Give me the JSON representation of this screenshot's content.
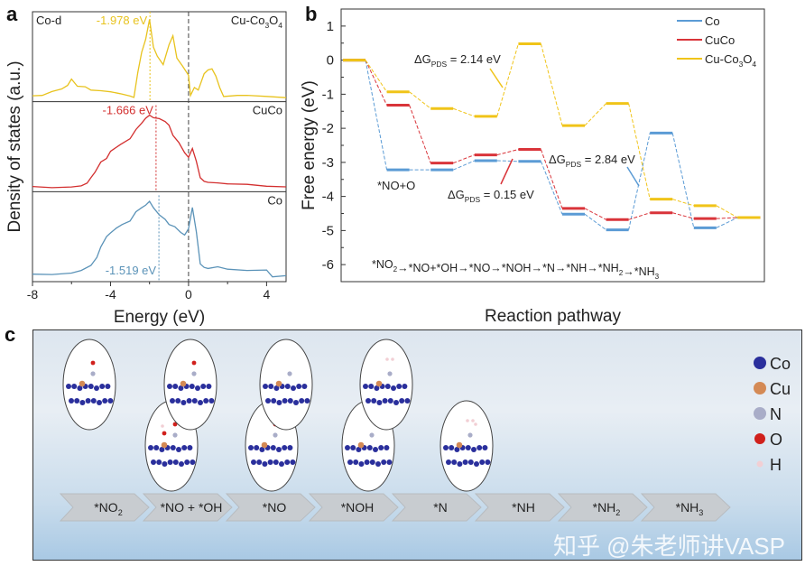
{
  "panel_labels": {
    "a": "a",
    "b": "b",
    "c": "c"
  },
  "chart_data": [
    {
      "type": "line",
      "panel": "a",
      "xlabel": "Energy (eV)",
      "ylabel": "Density of states (a.u.)",
      "xlim": [
        -8,
        5
      ],
      "xticks": [
        "-8",
        "-4",
        "0",
        "4"
      ],
      "corner_label": "Co-d",
      "series": [
        {
          "name": "Cu-Co3O4",
          "label_main": "Cu-Co",
          "label_sub1": "3",
          "label_mid": "O",
          "label_sub2": "4",
          "color": "#e8c31e",
          "d_band_center": -1.978,
          "d_band_label": "-1.978 eV",
          "x": [
            -8,
            -7.5,
            -7,
            -6.5,
            -6.2,
            -6,
            -5.7,
            -5.3,
            -5,
            -4.5,
            -4,
            -3.5,
            -3,
            -2.8,
            -2.6,
            -2.4,
            -2.2,
            -2,
            -1.8,
            -1.6,
            -1.3,
            -1,
            -0.8,
            -0.6,
            -0.3,
            0,
            0.1,
            0.3,
            0.5,
            0.8,
            1,
            1.2,
            1.4,
            1.6,
            1.8,
            2.5,
            3,
            4,
            5
          ],
          "y": [
            0.03,
            0.05,
            0.1,
            0.12,
            0.15,
            0.23,
            0.15,
            0.16,
            0.12,
            0.1,
            0.07,
            0.04,
            0.02,
            0.02,
            0.35,
            0.6,
            0.75,
            1.0,
            0.65,
            0.55,
            0.45,
            0.7,
            0.8,
            0.5,
            0.4,
            0.3,
            0.05,
            0.15,
            0.1,
            0.3,
            0.35,
            0.38,
            0.3,
            0.15,
            0.02,
            0.02,
            0.02,
            0.02,
            0.02
          ]
        },
        {
          "name": "CuCo",
          "label_main": "CuCo",
          "color": "#d32f2f",
          "d_band_center": -1.666,
          "d_band_label": "-1.666 eV",
          "x": [
            -8,
            -7,
            -6,
            -5.5,
            -5.2,
            -5,
            -4.8,
            -4.5,
            -4.2,
            -4,
            -3.5,
            -3,
            -2.7,
            -2.4,
            -2.2,
            -2,
            -1.8,
            -1.5,
            -1.2,
            -1,
            -0.8,
            -0.5,
            -0.2,
            0,
            0.2,
            0.4,
            0.6,
            0.8,
            1,
            1.5,
            2,
            3,
            4,
            5
          ],
          "y": [
            0.02,
            0.02,
            0.03,
            0.03,
            0.05,
            0.12,
            0.2,
            0.35,
            0.4,
            0.48,
            0.55,
            0.62,
            0.75,
            0.85,
            0.92,
            0.95,
            0.9,
            0.88,
            0.85,
            0.82,
            0.7,
            0.6,
            0.45,
            0.38,
            0.5,
            0.35,
            0.15,
            0.1,
            0.07,
            0.05,
            0.04,
            0.05,
            0.04,
            0.03
          ]
        },
        {
          "name": "Co",
          "label_main": "Co",
          "color": "#5b93b8",
          "d_band_center": -1.519,
          "d_band_label": "-1.519 eV",
          "x": [
            -8,
            -7,
            -6,
            -5.5,
            -5,
            -4.7,
            -4.5,
            -4.2,
            -4,
            -3.7,
            -3.4,
            -3,
            -2.7,
            -2.4,
            -2.2,
            -2,
            -1.8,
            -1.5,
            -1.2,
            -1,
            -0.7,
            -0.4,
            -0.2,
            0,
            0.2,
            0.4,
            0.6,
            0.8,
            1,
            1.5,
            2,
            3,
            4,
            4.3,
            5
          ],
          "y": [
            0.05,
            0.06,
            0.08,
            0.1,
            0.15,
            0.25,
            0.4,
            0.55,
            0.6,
            0.65,
            0.68,
            0.72,
            0.85,
            0.92,
            0.96,
            1.0,
            0.9,
            0.8,
            0.75,
            0.7,
            0.68,
            0.6,
            0.55,
            0.62,
            0.9,
            0.6,
            0.2,
            0.15,
            0.12,
            0.13,
            0.1,
            0.1,
            0.12,
            0.03,
            0.03
          ]
        }
      ]
    },
    {
      "type": "line",
      "panel": "b",
      "style": "free-energy-diagram",
      "xlabel": "Reaction pathway",
      "ylabel": "Free energy (eV)",
      "ylim": [
        -6.5,
        1.5
      ],
      "yticks": [
        "1",
        "0",
        "-1",
        "-2",
        "-3",
        "-4",
        "-5",
        "-6"
      ],
      "legend_position": "top-right",
      "steps": 10,
      "series": [
        {
          "name": "Co",
          "label_main": "Co",
          "color": "#5b9bd5",
          "values": [
            0,
            -3.22,
            -3.22,
            -2.95,
            -2.97,
            -4.52,
            -4.98,
            -2.14,
            -4.92,
            -4.62
          ]
        },
        {
          "name": "CuCo",
          "label_main": "CuCo",
          "color": "#d9343a",
          "values": [
            0,
            -1.32,
            -3.02,
            -2.78,
            -2.62,
            -4.35,
            -4.68,
            -4.48,
            -4.65,
            -4.62
          ]
        },
        {
          "name": "Cu-Co3O4",
          "label_main": "Cu-Co",
          "label_sub1": "3",
          "label_mid": "O",
          "label_sub2": "4",
          "color": "#f0c419",
          "values": [
            0,
            -0.93,
            -1.42,
            -1.65,
            0.48,
            -1.92,
            -1.27,
            -4.08,
            -4.27,
            -4.62
          ]
        }
      ],
      "annotations": [
        {
          "pre": "ΔG",
          "sub": "PDS",
          "post": " = 2.14 eV",
          "color": "#f0c419"
        },
        {
          "pre": "ΔG",
          "sub": "PDS",
          "post": " = 0.15 eV",
          "color": "#d9343a"
        },
        {
          "pre": "ΔG",
          "sub": "PDS",
          "post": " = 2.84 eV",
          "color": "#5b9bd5"
        },
        {
          "text": "*NO+O"
        }
      ],
      "pathway": [
        {
          "main": "*NO",
          "sub": "2"
        },
        {
          "main": "*NO+*OH"
        },
        {
          "main": "*NO"
        },
        {
          "main": "*NOH"
        },
        {
          "main": "*N"
        },
        {
          "main": "*NH"
        },
        {
          "main": "*NH",
          "sub": "2"
        },
        {
          "main": "*NH",
          "sub": "3"
        }
      ]
    }
  ],
  "panel_c": {
    "legend": [
      {
        "label": "Co",
        "color": "#2a2f9c"
      },
      {
        "label": "Cu",
        "color": "#d48a55"
      },
      {
        "label": "N",
        "color": "#a9adc8"
      },
      {
        "label": "O",
        "color": "#d0201c"
      },
      {
        "label": "H",
        "color": "#f2cfd4"
      }
    ],
    "steps": [
      {
        "main": "*NO",
        "sub": "2"
      },
      {
        "main": "*NO + *OH"
      },
      {
        "main": "*NO"
      },
      {
        "main": "*NOH"
      },
      {
        "main": "*N"
      },
      {
        "main": "*NH"
      },
      {
        "main": "*NH",
        "sub": "2"
      },
      {
        "main": "*NH",
        "sub": "3"
      }
    ],
    "watermark": "知乎 @朱老师讲VASP"
  }
}
